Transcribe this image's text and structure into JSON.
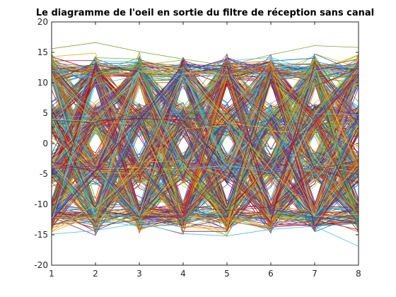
{
  "chart_data": {
    "type": "line",
    "title": "Le diagramme de l'oeil en sortie du filtre de réception sans canal",
    "xlabel": "",
    "ylabel": "",
    "xlim": [
      1,
      8
    ],
    "ylim": [
      -20,
      20
    ],
    "xticks": [
      "1",
      "2",
      "3",
      "4",
      "5",
      "6",
      "7",
      "8"
    ],
    "yticks": [
      "20",
      "15",
      "10",
      "5",
      "0",
      "-5",
      "-10",
      "-15",
      "-20"
    ],
    "grid": false,
    "legend": "none",
    "x": [
      1,
      2,
      3,
      4,
      5,
      6,
      7,
      8
    ],
    "symbol_levels": [
      -12,
      -4,
      4,
      12
    ],
    "series_count": 700,
    "series_palette": [
      "#0072BD",
      "#D95319",
      "#EDB120",
      "#7E2F8E",
      "#77AC30",
      "#4DBEEE",
      "#A2142F"
    ],
    "series_sample": [
      {
        "values": [
          12.1,
          13.0,
          11.8,
          4.2,
          -3.9,
          -11.5,
          -12.3,
          -4.1
        ]
      },
      {
        "values": [
          -12.4,
          -11.8,
          -4.3,
          3.8,
          11.7,
          12.2,
          4.5,
          -3.6
        ]
      },
      {
        "values": [
          4.0,
          3.6,
          11.9,
          12.4,
          4.1,
          -4.2,
          -12.0,
          -11.6
        ]
      },
      {
        "values": [
          -4.1,
          -3.7,
          -12.2,
          -11.9,
          -4.0,
          3.9,
          12.1,
          13.2
        ]
      },
      {
        "values": [
          15.6,
          16.6,
          15.1,
          13.9,
          12.8,
          14.6,
          16.1,
          15.8
        ]
      },
      {
        "values": [
          -14.9,
          -14.3,
          -13.1,
          -14.8,
          -15.2,
          -14.1,
          -13.6,
          -16.9
        ]
      }
    ]
  }
}
